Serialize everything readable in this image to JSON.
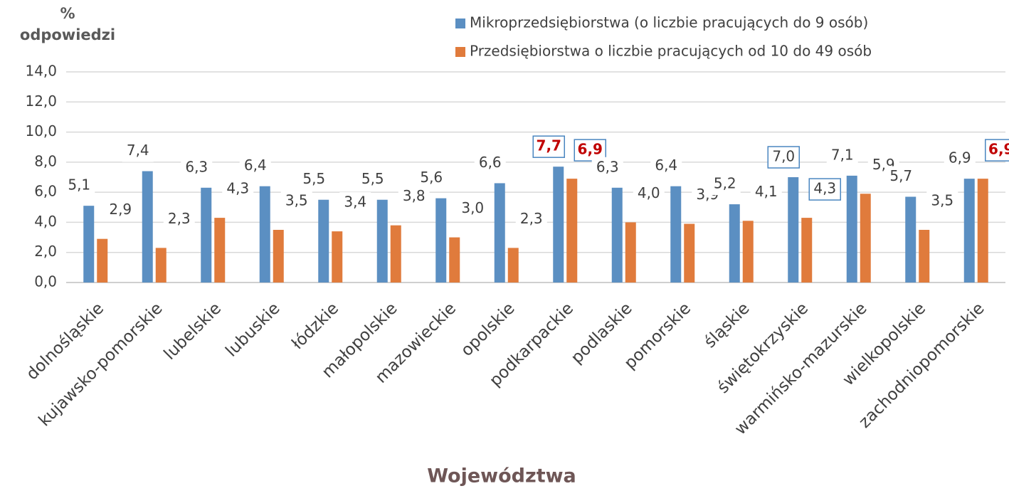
{
  "chart_data": {
    "type": "bar",
    "y_label": "% odpowiedzi",
    "x_label": "Województwa",
    "categories": [
      "dolnośląskie",
      "kujawsko-pomorskie",
      "lubelskie",
      "lubuskie",
      "łódzkie",
      "małopolskie",
      "mazowieckie",
      "opolskie",
      "podkarpackie",
      "podlaskie",
      "pomorskie",
      "śląskie",
      "świętokrzyskie",
      "warmińsko-mazurskie",
      "wielkopolskie",
      "zachodniopomorskie"
    ],
    "series": [
      {
        "name": "Mikroprzedsiębiorstwa (o liczbie pracujących do 9 osób)",
        "color": "#5b8fc2",
        "values": [
          5.1,
          7.4,
          6.3,
          6.4,
          5.5,
          5.5,
          5.6,
          6.6,
          7.7,
          6.3,
          6.4,
          5.2,
          7.0,
          7.1,
          5.7,
          6.9
        ],
        "value_labels": [
          "5,1",
          "7,4",
          "6,3",
          "6,4",
          "5,5",
          "5,5",
          "5,6",
          "6,6",
          "7,7",
          "6,3",
          "6,4",
          "5,2",
          "7,0",
          "7,1",
          "5,7",
          "6,9"
        ],
        "boxed": [
          false,
          false,
          false,
          false,
          false,
          false,
          false,
          false,
          true,
          false,
          false,
          false,
          true,
          false,
          false,
          false
        ],
        "emphasis": [
          false,
          false,
          false,
          false,
          false,
          false,
          false,
          false,
          true,
          false,
          false,
          false,
          false,
          false,
          false,
          false
        ]
      },
      {
        "name": "Przedsiębiorstwa o liczbie pracujących od 10 do 49 osób",
        "color": "#e07b3c",
        "values": [
          2.9,
          2.3,
          4.3,
          3.5,
          3.4,
          3.8,
          3.0,
          2.3,
          6.9,
          4.0,
          3.9,
          4.1,
          4.3,
          5.9,
          3.5,
          6.9
        ],
        "value_labels": [
          "2,9",
          "2,3",
          "4,3",
          "3,5",
          "3,4",
          "3,8",
          "3,0",
          "2,3",
          "6,9",
          "4,0",
          "3,9",
          "4,1",
          "4,3",
          "5,9",
          "3,5",
          "6,9"
        ],
        "boxed": [
          false,
          false,
          false,
          false,
          false,
          false,
          false,
          false,
          true,
          false,
          false,
          false,
          true,
          false,
          false,
          true
        ],
        "emphasis": [
          false,
          false,
          false,
          false,
          false,
          false,
          false,
          false,
          true,
          false,
          false,
          false,
          false,
          false,
          false,
          true
        ]
      }
    ],
    "ylim": [
      0,
      14
    ],
    "yticks": [
      {
        "value": 0,
        "label": "0,0"
      },
      {
        "value": 2,
        "label": "2,0"
      },
      {
        "value": 4,
        "label": "4,0"
      },
      {
        "value": 6,
        "label": "6,0"
      },
      {
        "value": 8,
        "label": "8,0"
      },
      {
        "value": 10,
        "label": "10,0"
      },
      {
        "value": 12,
        "label": "12,0"
      },
      {
        "value": 14,
        "label": "14,0"
      }
    ],
    "grid": true,
    "legend": "top-right"
  }
}
